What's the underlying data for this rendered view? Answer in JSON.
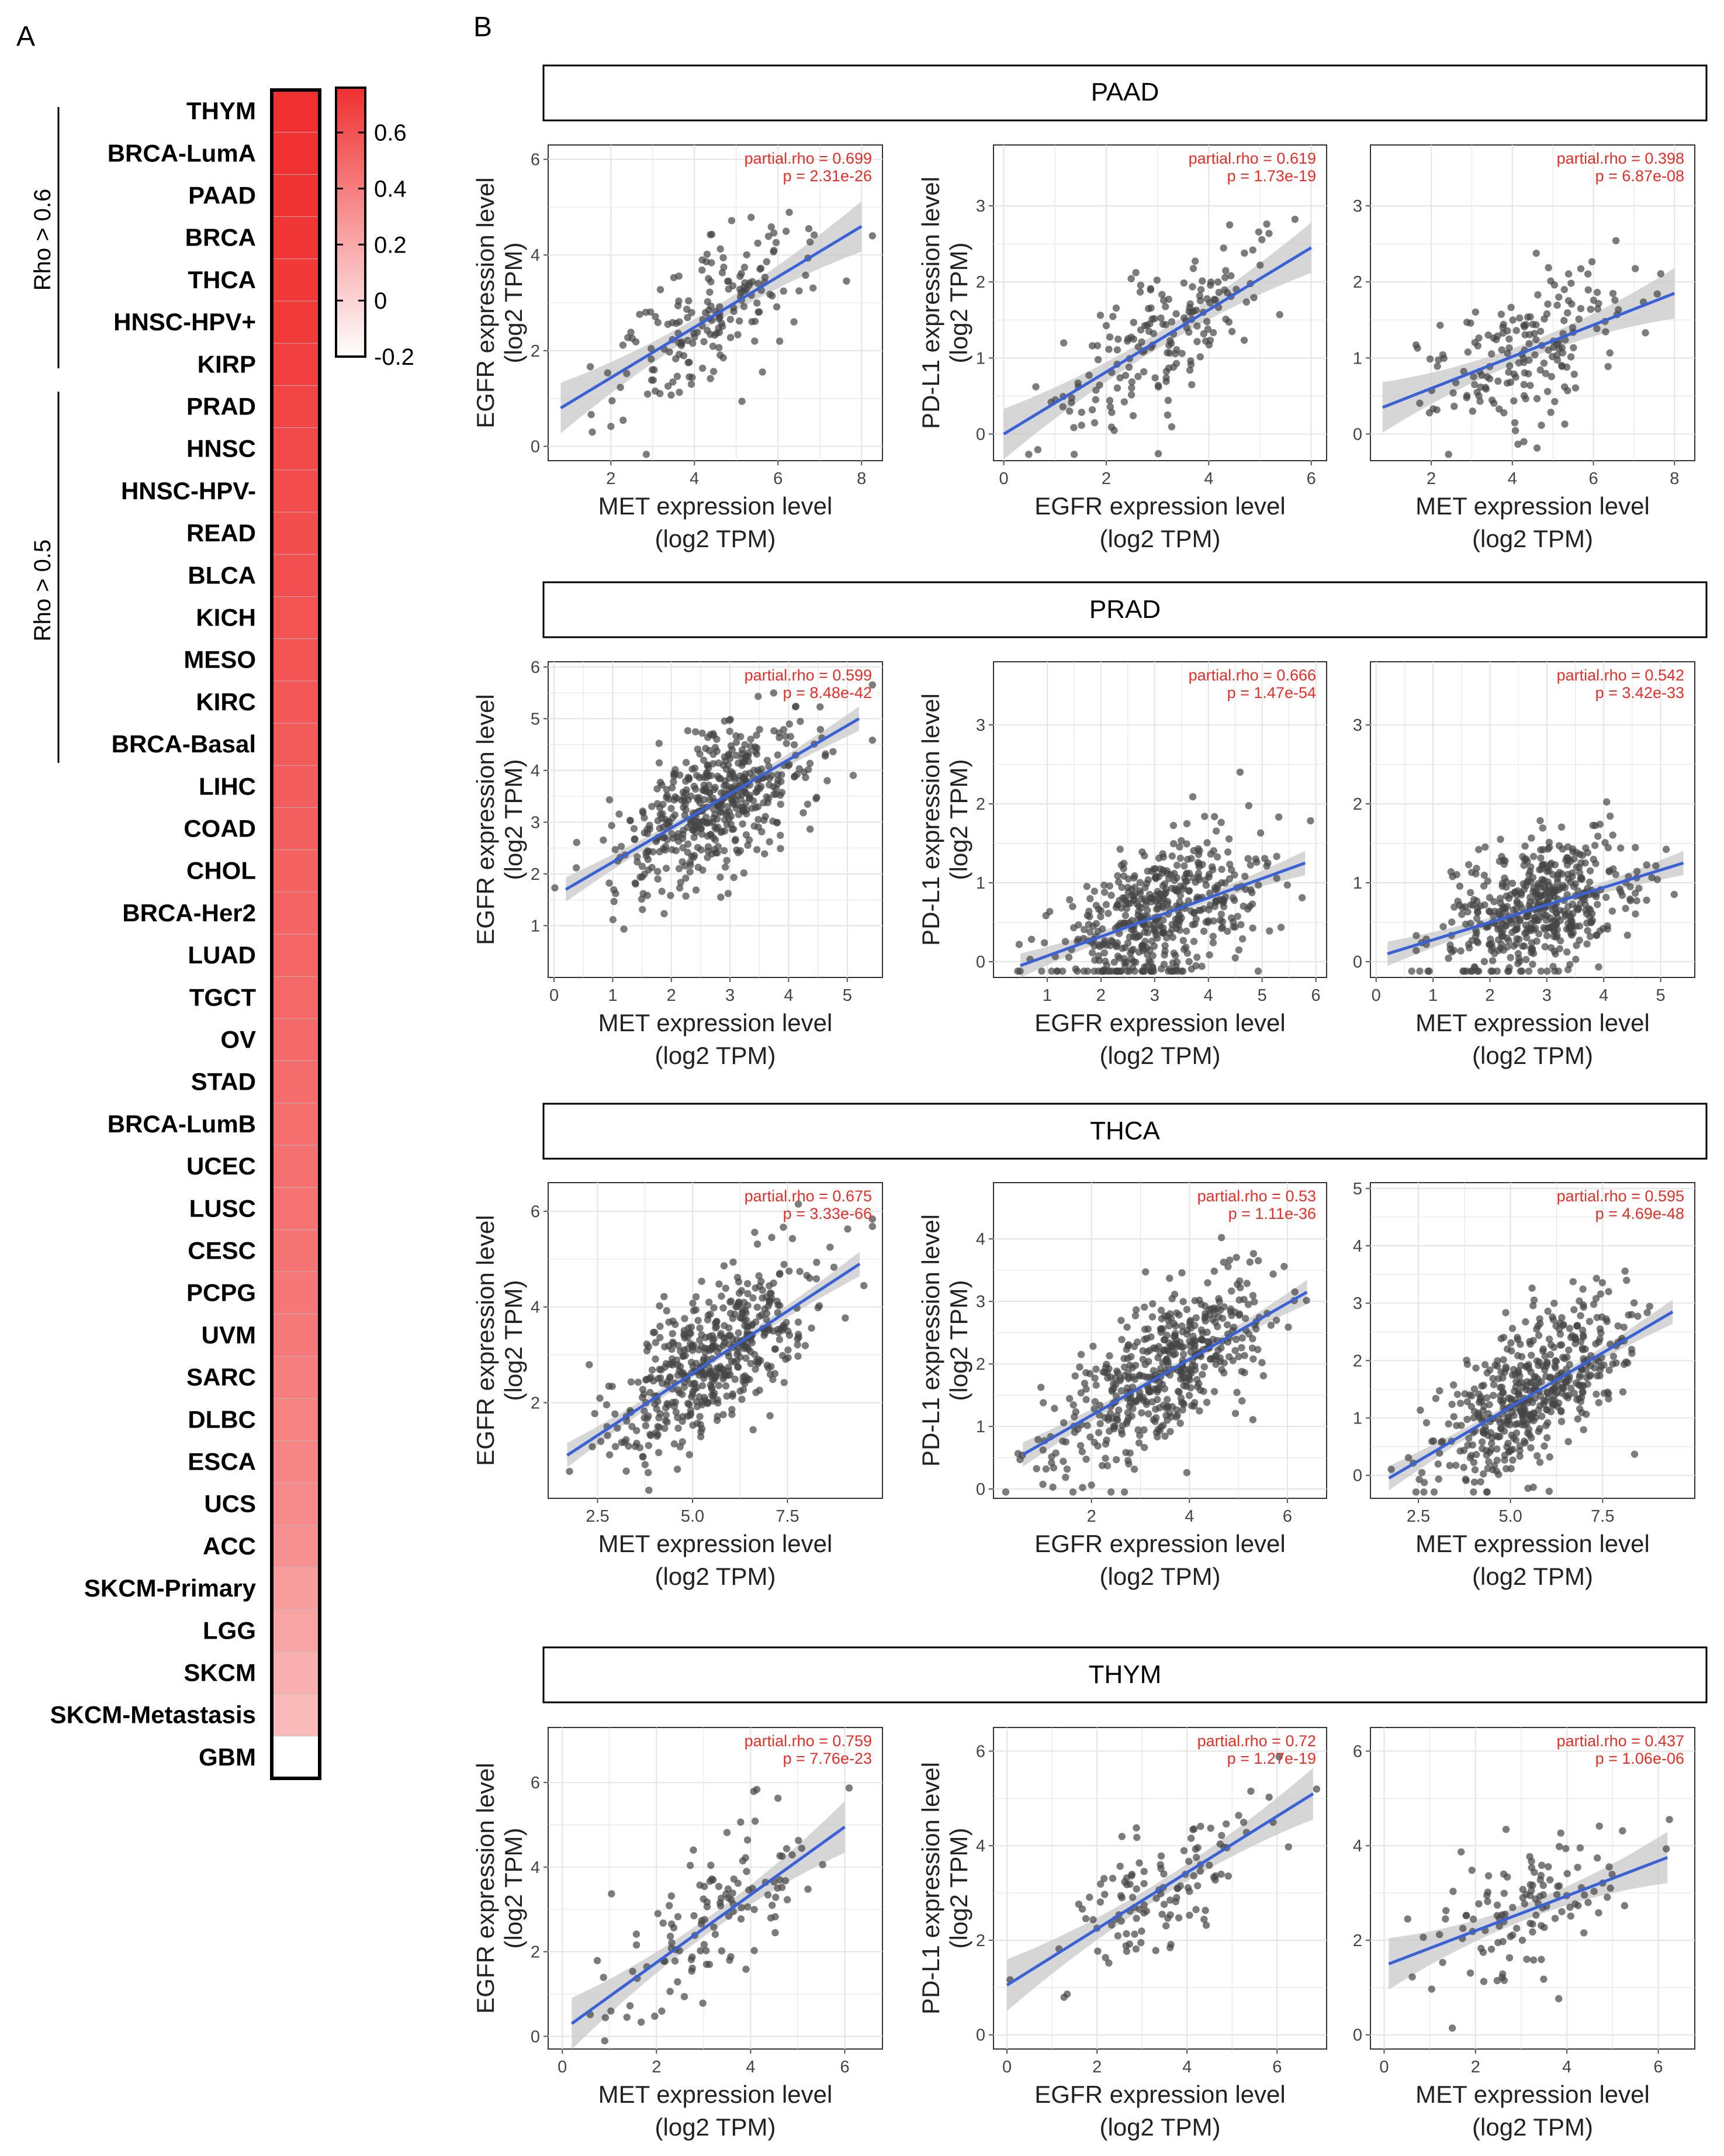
{
  "panel_labels": {
    "a": "A",
    "b": "B"
  },
  "heatmap": {
    "rows": [
      "THYM",
      "BRCA-LumA",
      "PAAD",
      "BRCA",
      "THCA",
      "HNSC-HPV+",
      "KIRP",
      "PRAD",
      "HNSC",
      "HNSC-HPV-",
      "READ",
      "BLCA",
      "KICH",
      "MESO",
      "KIRC",
      "BRCA-Basal",
      "LIHC",
      "COAD",
      "CHOL",
      "BRCA-Her2",
      "LUAD",
      "TGCT",
      "OV",
      "STAD",
      "BRCA-LumB",
      "UCEC",
      "LUSC",
      "CESC",
      "PCPG",
      "UVM",
      "SARC",
      "DLBC",
      "ESCA",
      "UCS",
      "ACC",
      "SKCM-Primary",
      "LGG",
      "SKCM",
      "SKCM-Metastasis",
      "GBM"
    ],
    "values": [
      0.76,
      0.75,
      0.74,
      0.73,
      0.72,
      0.71,
      0.69,
      0.66,
      0.64,
      0.63,
      0.62,
      0.61,
      0.6,
      0.59,
      0.58,
      0.56,
      0.55,
      0.54,
      0.53,
      0.52,
      0.51,
      0.5,
      0.49,
      0.48,
      0.47,
      0.46,
      0.45,
      0.44,
      0.43,
      0.42,
      0.4,
      0.38,
      0.36,
      0.34,
      0.31,
      0.26,
      0.22,
      0.17,
      0.12,
      -0.2
    ],
    "groups": [
      {
        "label": "Rho > 0.6"
      },
      {
        "label": "Rho > 0.5"
      }
    ],
    "colorbar": {
      "ticks": [
        "0.6",
        "0.4",
        "0.2",
        "0",
        "-0.2"
      ],
      "tick_values": [
        0.6,
        0.4,
        0.2,
        0,
        -0.2
      ],
      "min": -0.2,
      "max": 0.76
    },
    "colors": {
      "low": "#ffffff",
      "high": "#f03030"
    }
  },
  "colors": {
    "point": "#444444",
    "line": "#3a62d6",
    "band": "#c8c8c8",
    "annot": "#e0302a",
    "grid": "#e4e4e4",
    "border": "#000000"
  },
  "chart_data": [
    {
      "type": "scatter",
      "panel": "PAAD",
      "title": "PAAD",
      "xlabel": [
        "MET expression level",
        "(log2 TPM)"
      ],
      "ylabel": [
        "EGFR expression level",
        "(log2 TPM)"
      ],
      "xlim": [
        0.5,
        8.5
      ],
      "ylim": [
        -0.3,
        6.3
      ],
      "xticks": [
        2,
        4,
        6,
        8
      ],
      "yticks": [
        0,
        2,
        4,
        6
      ],
      "annotation": [
        "partial.rho = 0.699",
        "p = 2.31e-26"
      ],
      "fit": {
        "x": [
          0.8,
          8.0
        ],
        "y": [
          0.8,
          4.6
        ]
      },
      "n_points": 180,
      "seed": 11
    },
    {
      "type": "scatter",
      "panel": "PAAD",
      "xlabel": [
        "EGFR expression level",
        "(log2 TPM)"
      ],
      "ylabel": [
        "PD-L1  expression level",
        "(log2 TPM)"
      ],
      "xlim": [
        -0.2,
        6.3
      ],
      "ylim": [
        -0.35,
        3.8
      ],
      "xticks": [
        0,
        2,
        4,
        6
      ],
      "yticks": [
        0,
        1,
        2,
        3
      ],
      "annotation": [
        "partial.rho = 0.619",
        "p = 1.73e-19"
      ],
      "fit": {
        "x": [
          0,
          6.0
        ],
        "y": [
          0.0,
          2.45
        ]
      },
      "n_points": 180,
      "seed": 12
    },
    {
      "type": "scatter",
      "panel": "PAAD",
      "xlabel": [
        "MET expression level",
        "(log2 TPM)"
      ],
      "ylabel": [
        "",
        ""
      ],
      "xlim": [
        0.5,
        8.5
      ],
      "ylim": [
        -0.35,
        3.8
      ],
      "xticks": [
        2,
        4,
        6,
        8
      ],
      "yticks": [
        0,
        1,
        2,
        3
      ],
      "annotation": [
        "partial.rho = 0.398",
        "p = 6.87e-08"
      ],
      "fit": {
        "x": [
          0.8,
          8.0
        ],
        "y": [
          0.35,
          1.85
        ]
      },
      "n_points": 180,
      "seed": 13
    },
    {
      "type": "scatter",
      "panel": "PRAD",
      "title": "PRAD",
      "xlabel": [
        "MET expression level",
        "(log2 TPM)"
      ],
      "ylabel": [
        "EGFR expression level",
        "(log2 TPM)"
      ],
      "xlim": [
        -0.1,
        5.6
      ],
      "ylim": [
        0,
        6.1
      ],
      "xticks": [
        0,
        1,
        2,
        3,
        4,
        5
      ],
      "yticks": [
        1,
        2,
        3,
        4,
        5,
        6
      ],
      "annotation": [
        "partial.rho = 0.599",
        "p = 8.48e-42"
      ],
      "fit": {
        "x": [
          0.2,
          5.2
        ],
        "y": [
          1.7,
          5.0
        ]
      },
      "n_points": 500,
      "seed": 21
    },
    {
      "type": "scatter",
      "panel": "PRAD",
      "xlabel": [
        "EGFR expression level",
        "(log2 TPM)"
      ],
      "ylabel": [
        "PD-L1  expression level",
        "(log2 TPM)"
      ],
      "xlim": [
        0.0,
        6.2
      ],
      "ylim": [
        -0.2,
        3.8
      ],
      "xticks": [
        1,
        2,
        3,
        4,
        5,
        6
      ],
      "yticks": [
        0,
        1,
        2,
        3
      ],
      "annotation": [
        "partial.rho = 0.666",
        "p = 1.47e-54"
      ],
      "fit": {
        "x": [
          0.5,
          5.8
        ],
        "y": [
          -0.05,
          1.25
        ]
      },
      "n_points": 500,
      "seed": 22
    },
    {
      "type": "scatter",
      "panel": "PRAD",
      "xlabel": [
        "MET expression level",
        "(log2 TPM)"
      ],
      "ylabel": [
        "",
        ""
      ],
      "xlim": [
        -0.1,
        5.6
      ],
      "ylim": [
        -0.2,
        3.8
      ],
      "xticks": [
        0,
        1,
        2,
        3,
        4,
        5
      ],
      "yticks": [
        0,
        1,
        2,
        3
      ],
      "annotation": [
        "partial.rho = 0.542",
        "p = 3.42e-33"
      ],
      "fit": {
        "x": [
          0.2,
          5.4
        ],
        "y": [
          0.1,
          1.25
        ]
      },
      "n_points": 500,
      "seed": 23
    },
    {
      "type": "scatter",
      "panel": "THCA",
      "title": "THCA",
      "xlabel": [
        "MET expression level",
        "(log2 TPM)"
      ],
      "ylabel": [
        "EGFR expression level",
        "(log2 TPM)"
      ],
      "xlim": [
        1.2,
        10.0
      ],
      "ylim": [
        0.0,
        6.6
      ],
      "xticks": [
        2.5,
        5.0,
        7.5
      ],
      "yticks": [
        2,
        4,
        6
      ],
      "annotation": [
        "partial.rho = 0.675",
        "p = 3.33e-66"
      ],
      "fit": {
        "x": [
          1.7,
          9.4
        ],
        "y": [
          0.9,
          4.9
        ]
      },
      "n_points": 500,
      "seed": 31
    },
    {
      "type": "scatter",
      "panel": "THCA",
      "xlabel": [
        "EGFR expression level",
        "(log2 TPM)"
      ],
      "ylabel": [
        "PD-L1  expression level",
        "(log2 TPM)"
      ],
      "xlim": [
        0.0,
        6.8
      ],
      "ylim": [
        -0.15,
        4.9
      ],
      "xticks": [
        2,
        4,
        6
      ],
      "yticks": [
        0,
        1,
        2,
        3,
        4
      ],
      "annotation": [
        "partial.rho = 0.53",
        "p = 1.11e-36"
      ],
      "fit": {
        "x": [
          0.6,
          6.4
        ],
        "y": [
          0.55,
          3.15
        ]
      },
      "n_points": 500,
      "seed": 32
    },
    {
      "type": "scatter",
      "panel": "THCA",
      "xlabel": [
        "MET expression level",
        "(log2 TPM)"
      ],
      "ylabel": [
        "",
        ""
      ],
      "xlim": [
        1.2,
        10.0
      ],
      "ylim": [
        -0.4,
        5.1
      ],
      "xticks": [
        2.5,
        5.0,
        7.5
      ],
      "yticks": [
        0,
        1,
        2,
        3,
        4,
        5
      ],
      "annotation": [
        "partial.rho = 0.595",
        "p = 4.69e-48"
      ],
      "fit": {
        "x": [
          1.7,
          9.4
        ],
        "y": [
          -0.05,
          2.85
        ]
      },
      "n_points": 500,
      "seed": 33
    },
    {
      "type": "scatter",
      "panel": "THYM",
      "title": "THYM",
      "xlabel": [
        "MET expression level",
        "(log2 TPM)"
      ],
      "ylabel": [
        "EGFR expression level",
        "(log2 TPM)"
      ],
      "xlim": [
        -0.3,
        6.8
      ],
      "ylim": [
        -0.3,
        7.3
      ],
      "xticks": [
        0,
        2,
        4,
        6
      ],
      "yticks": [
        0,
        2,
        4,
        6
      ],
      "annotation": [
        "partial.rho = 0.759",
        "p = 7.76e-23"
      ],
      "fit": {
        "x": [
          0.2,
          6.0
        ],
        "y": [
          0.3,
          4.95
        ]
      },
      "n_points": 120,
      "seed": 41
    },
    {
      "type": "scatter",
      "panel": "THYM",
      "xlabel": [
        "EGFR expression level",
        "(log2 TPM)"
      ],
      "ylabel": [
        "PD-L1  expression level",
        "(log2 TPM)"
      ],
      "xlim": [
        -0.3,
        7.1
      ],
      "ylim": [
        -0.3,
        6.5
      ],
      "xticks": [
        0,
        2,
        4,
        6
      ],
      "yticks": [
        0,
        2,
        4,
        6
      ],
      "annotation": [
        "partial.rho = 0.72",
        "p = 1.27e-19"
      ],
      "fit": {
        "x": [
          0.0,
          6.8
        ],
        "y": [
          1.05,
          5.1
        ]
      },
      "n_points": 120,
      "seed": 42
    },
    {
      "type": "scatter",
      "panel": "THYM",
      "xlabel": [
        "MET expression level",
        "(log2 TPM)"
      ],
      "ylabel": [
        "",
        ""
      ],
      "xlim": [
        -0.3,
        6.8
      ],
      "ylim": [
        -0.3,
        6.5
      ],
      "xticks": [
        0,
        2,
        4,
        6
      ],
      "yticks": [
        0,
        2,
        4,
        6
      ],
      "annotation": [
        "partial.rho = 0.437",
        "p = 1.06e-06"
      ],
      "fit": {
        "x": [
          0.1,
          6.2
        ],
        "y": [
          1.5,
          3.75
        ]
      },
      "n_points": 120,
      "seed": 43
    }
  ]
}
